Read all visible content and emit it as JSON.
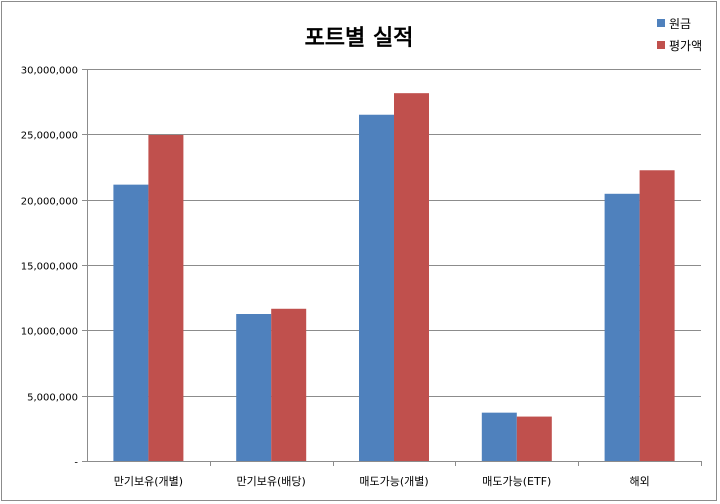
{
  "chart_data": {
    "type": "bar",
    "title": "포트별 실적",
    "categories": [
      "만기보유(개별)",
      "만기보유(배당)",
      "매도가능(개별)",
      "매도가능(ETF)",
      "해외"
    ],
    "series": [
      {
        "name": "원금",
        "color": "#4f81bd",
        "values": [
          21150000,
          11250000,
          26500000,
          3700000,
          20450000
        ]
      },
      {
        "name": "평가액",
        "color": "#c0504d",
        "values": [
          24950000,
          11650000,
          28150000,
          3400000,
          22250000
        ]
      }
    ],
    "ylim": [
      0,
      30000000
    ],
    "yticks": [
      0,
      5000000,
      10000000,
      15000000,
      20000000,
      25000000,
      30000000
    ],
    "ytick_labels": [
      "-",
      "5,000,000",
      "10,000,000",
      "15,000,000",
      "20,000,000",
      "25,000,000",
      "30,000,000"
    ],
    "grid": true,
    "legend": "top-right",
    "xlabel": "",
    "ylabel": ""
  }
}
